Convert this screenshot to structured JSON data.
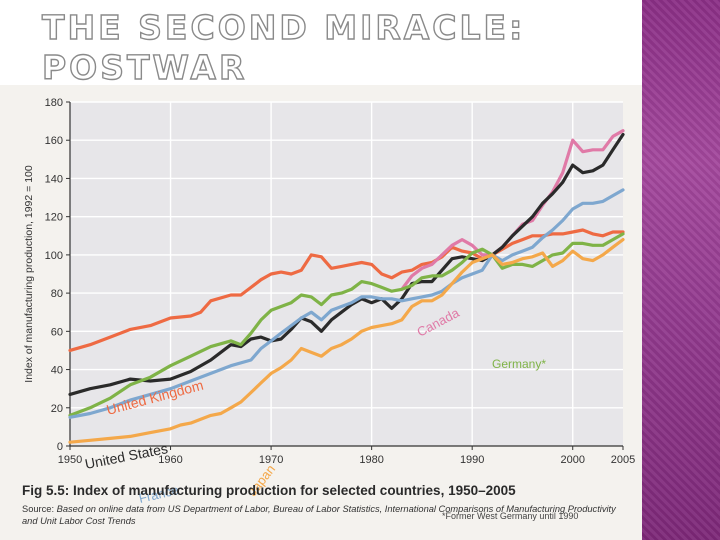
{
  "slide": {
    "title": "The Second Miracle: Postwar Reconstruction and Growth"
  },
  "figure": {
    "caption_label": "Fig 5.5:",
    "caption_text": "Index of manufacturing production for selected countries, 1950–2005",
    "source_lead": "Source:",
    "source_text": "Based on online data from US Department of Labor, Bureau of Labor Statistics, International Comparisons of Manufacturing Productivity and Unit Labor Cost Trends"
  },
  "colors": {
    "grid": "#ffffff",
    "plot_bg": "#e7e6e9",
    "axis": "#333333",
    "uk": "#ee6a43",
    "canada": "#e07aa7",
    "us": "#2a2a2a",
    "germany": "#7fb347",
    "france": "#7ea7cf",
    "japan": "#f4a84a"
  },
  "chart_data": {
    "type": "line",
    "title": "",
    "xlabel": "",
    "ylabel": "Index of manufacturing production, 1992 = 100",
    "xlim": [
      1950,
      2005
    ],
    "ylim": [
      0,
      180
    ],
    "xticks": [
      1950,
      1960,
      1970,
      1980,
      1990,
      2000,
      2005
    ],
    "yticks": [
      0,
      20,
      40,
      60,
      80,
      100,
      120,
      140,
      160,
      180
    ],
    "footnote": "*Former West Germany until 1990",
    "series": [
      {
        "name": "United Kingdom",
        "color_key": "uk",
        "label": "United Kingdom",
        "points": [
          [
            1950,
            50
          ],
          [
            1952,
            53
          ],
          [
            1954,
            57
          ],
          [
            1956,
            61
          ],
          [
            1958,
            63
          ],
          [
            1960,
            67
          ],
          [
            1962,
            68
          ],
          [
            1963,
            70
          ],
          [
            1964,
            76
          ],
          [
            1966,
            79
          ],
          [
            1967,
            79
          ],
          [
            1968,
            83
          ],
          [
            1969,
            87
          ],
          [
            1970,
            90
          ],
          [
            1971,
            91
          ],
          [
            1972,
            90
          ],
          [
            1973,
            92
          ],
          [
            1974,
            100
          ],
          [
            1975,
            99
          ],
          [
            1976,
            93
          ],
          [
            1977,
            94
          ],
          [
            1978,
            95
          ],
          [
            1979,
            96
          ],
          [
            1980,
            95
          ],
          [
            1981,
            90
          ],
          [
            1982,
            88
          ],
          [
            1983,
            91
          ],
          [
            1984,
            92
          ],
          [
            1985,
            95
          ],
          [
            1986,
            96
          ],
          [
            1987,
            99
          ],
          [
            1988,
            104
          ],
          [
            1989,
            102
          ],
          [
            1990,
            101
          ],
          [
            1991,
            98
          ],
          [
            1992,
            100
          ],
          [
            1993,
            103
          ],
          [
            1994,
            106
          ],
          [
            1995,
            108
          ],
          [
            1996,
            110
          ],
          [
            1997,
            110
          ],
          [
            1998,
            111
          ],
          [
            1999,
            111
          ],
          [
            2000,
            112
          ],
          [
            2001,
            113
          ],
          [
            2002,
            111
          ],
          [
            2003,
            110
          ],
          [
            2004,
            112
          ],
          [
            2005,
            112
          ]
        ]
      },
      {
        "name": "Canada",
        "color_key": "canada",
        "label": "Canada",
        "points": [
          [
            1983,
            82
          ],
          [
            1984,
            89
          ],
          [
            1985,
            93
          ],
          [
            1986,
            95
          ],
          [
            1987,
            100
          ],
          [
            1988,
            105
          ],
          [
            1989,
            108
          ],
          [
            1990,
            105
          ],
          [
            1991,
            100
          ],
          [
            1992,
            100
          ],
          [
            1993,
            104
          ],
          [
            1994,
            110
          ],
          [
            1995,
            116
          ],
          [
            1996,
            118
          ],
          [
            1997,
            126
          ],
          [
            1998,
            133
          ],
          [
            1999,
            143
          ],
          [
            2000,
            160
          ],
          [
            2001,
            154
          ],
          [
            2002,
            155
          ],
          [
            2003,
            155
          ],
          [
            2004,
            162
          ],
          [
            2005,
            165
          ]
        ]
      },
      {
        "name": "United States",
        "color_key": "us",
        "label": "United States",
        "points": [
          [
            1950,
            27
          ],
          [
            1952,
            30
          ],
          [
            1954,
            32
          ],
          [
            1956,
            35
          ],
          [
            1958,
            34
          ],
          [
            1960,
            35
          ],
          [
            1962,
            39
          ],
          [
            1964,
            45
          ],
          [
            1966,
            53
          ],
          [
            1967,
            52
          ],
          [
            1968,
            56
          ],
          [
            1969,
            57
          ],
          [
            1970,
            55
          ],
          [
            1971,
            56
          ],
          [
            1972,
            61
          ],
          [
            1973,
            67
          ],
          [
            1974,
            65
          ],
          [
            1975,
            60
          ],
          [
            1976,
            66
          ],
          [
            1977,
            70
          ],
          [
            1978,
            74
          ],
          [
            1979,
            77
          ],
          [
            1980,
            75
          ],
          [
            1981,
            77
          ],
          [
            1982,
            72
          ],
          [
            1983,
            77
          ],
          [
            1984,
            85
          ],
          [
            1985,
            86
          ],
          [
            1986,
            86
          ],
          [
            1987,
            92
          ],
          [
            1988,
            98
          ],
          [
            1989,
            99
          ],
          [
            1990,
            98
          ],
          [
            1991,
            97
          ],
          [
            1992,
            100
          ],
          [
            1993,
            104
          ],
          [
            1994,
            110
          ],
          [
            1995,
            115
          ],
          [
            1996,
            120
          ],
          [
            1997,
            127
          ],
          [
            1998,
            132
          ],
          [
            1999,
            138
          ],
          [
            2000,
            147
          ],
          [
            2001,
            143
          ],
          [
            2002,
            144
          ],
          [
            2003,
            147
          ],
          [
            2004,
            155
          ],
          [
            2005,
            163
          ]
        ]
      },
      {
        "name": "Germany*",
        "color_key": "germany",
        "label": "Germany*",
        "points": [
          [
            1950,
            16
          ],
          [
            1952,
            20
          ],
          [
            1954,
            25
          ],
          [
            1956,
            32
          ],
          [
            1958,
            36
          ],
          [
            1960,
            42
          ],
          [
            1962,
            47
          ],
          [
            1964,
            52
          ],
          [
            1966,
            55
          ],
          [
            1967,
            53
          ],
          [
            1968,
            59
          ],
          [
            1969,
            66
          ],
          [
            1970,
            71
          ],
          [
            1971,
            73
          ],
          [
            1972,
            75
          ],
          [
            1973,
            79
          ],
          [
            1974,
            78
          ],
          [
            1975,
            74
          ],
          [
            1976,
            79
          ],
          [
            1977,
            80
          ],
          [
            1978,
            82
          ],
          [
            1979,
            86
          ],
          [
            1980,
            85
          ],
          [
            1981,
            83
          ],
          [
            1982,
            81
          ],
          [
            1983,
            82
          ],
          [
            1984,
            84
          ],
          [
            1985,
            88
          ],
          [
            1986,
            89
          ],
          [
            1987,
            89
          ],
          [
            1988,
            92
          ],
          [
            1989,
            96
          ],
          [
            1990,
            101
          ],
          [
            1991,
            103
          ],
          [
            1992,
            100
          ],
          [
            1993,
            93
          ],
          [
            1994,
            95
          ],
          [
            1995,
            95
          ],
          [
            1996,
            94
          ],
          [
            1997,
            97
          ],
          [
            1998,
            100
          ],
          [
            1999,
            101
          ],
          [
            2000,
            106
          ],
          [
            2001,
            106
          ],
          [
            2002,
            105
          ],
          [
            2003,
            105
          ],
          [
            2004,
            108
          ],
          [
            2005,
            111
          ]
        ]
      },
      {
        "name": "France",
        "color_key": "france",
        "label": "France",
        "points": [
          [
            1950,
            15
          ],
          [
            1952,
            17
          ],
          [
            1954,
            20
          ],
          [
            1956,
            24
          ],
          [
            1958,
            27
          ],
          [
            1960,
            30
          ],
          [
            1962,
            34
          ],
          [
            1964,
            38
          ],
          [
            1966,
            42
          ],
          [
            1968,
            45
          ],
          [
            1969,
            51
          ],
          [
            1970,
            55
          ],
          [
            1971,
            59
          ],
          [
            1972,
            63
          ],
          [
            1973,
            67
          ],
          [
            1974,
            70
          ],
          [
            1975,
            66
          ],
          [
            1976,
            71
          ],
          [
            1977,
            73
          ],
          [
            1978,
            75
          ],
          [
            1979,
            78
          ],
          [
            1980,
            78
          ],
          [
            1981,
            77
          ],
          [
            1982,
            77
          ],
          [
            1983,
            76
          ],
          [
            1984,
            77
          ],
          [
            1985,
            78
          ],
          [
            1986,
            79
          ],
          [
            1987,
            81
          ],
          [
            1988,
            85
          ],
          [
            1989,
            88
          ],
          [
            1990,
            90
          ],
          [
            1991,
            92
          ],
          [
            1992,
            100
          ],
          [
            1993,
            97
          ],
          [
            1994,
            100
          ],
          [
            1995,
            102
          ],
          [
            1996,
            104
          ],
          [
            1997,
            109
          ],
          [
            1998,
            113
          ],
          [
            1999,
            118
          ],
          [
            2000,
            124
          ],
          [
            2001,
            127
          ],
          [
            2002,
            127
          ],
          [
            2003,
            128
          ],
          [
            2004,
            131
          ],
          [
            2005,
            134
          ]
        ]
      },
      {
        "name": "Japan",
        "color_key": "japan",
        "label": "Japan",
        "points": [
          [
            1950,
            2
          ],
          [
            1952,
            3
          ],
          [
            1954,
            4
          ],
          [
            1956,
            5
          ],
          [
            1958,
            7
          ],
          [
            1960,
            9
          ],
          [
            1961,
            11
          ],
          [
            1962,
            12
          ],
          [
            1963,
            14
          ],
          [
            1964,
            16
          ],
          [
            1965,
            17
          ],
          [
            1966,
            20
          ],
          [
            1967,
            23
          ],
          [
            1968,
            28
          ],
          [
            1969,
            33
          ],
          [
            1970,
            38
          ],
          [
            1971,
            41
          ],
          [
            1972,
            45
          ],
          [
            1973,
            51
          ],
          [
            1974,
            49
          ],
          [
            1975,
            47
          ],
          [
            1976,
            51
          ],
          [
            1977,
            53
          ],
          [
            1978,
            56
          ],
          [
            1979,
            60
          ],
          [
            1980,
            62
          ],
          [
            1981,
            63
          ],
          [
            1982,
            64
          ],
          [
            1983,
            66
          ],
          [
            1984,
            73
          ],
          [
            1985,
            76
          ],
          [
            1986,
            76
          ],
          [
            1987,
            79
          ],
          [
            1988,
            85
          ],
          [
            1989,
            91
          ],
          [
            1990,
            96
          ],
          [
            1991,
            98
          ],
          [
            1992,
            100
          ],
          [
            1993,
            95
          ],
          [
            1994,
            96
          ],
          [
            1995,
            98
          ],
          [
            1996,
            99
          ],
          [
            1997,
            101
          ],
          [
            1998,
            94
          ],
          [
            1999,
            97
          ],
          [
            2000,
            102
          ],
          [
            2001,
            98
          ],
          [
            2002,
            97
          ],
          [
            2003,
            100
          ],
          [
            2004,
            104
          ],
          [
            2005,
            108
          ]
        ]
      }
    ]
  }
}
